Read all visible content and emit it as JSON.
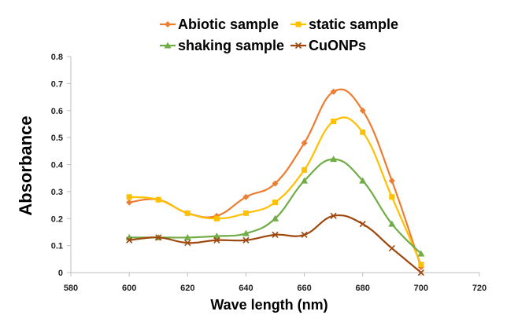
{
  "chart_data": {
    "type": "line",
    "xlabel": "Wave length (nm)",
    "ylabel": "Absorbance",
    "xlim": [
      580,
      720
    ],
    "ylim": [
      0,
      0.8
    ],
    "xticks": [
      "580",
      "600",
      "620",
      "640",
      "660",
      "680",
      "700",
      "720"
    ],
    "yticks": [
      "0",
      "0.1",
      "0.2",
      "0.3",
      "0.4",
      "0.5",
      "0.6",
      "0.7",
      "0.8"
    ],
    "x": [
      600,
      610,
      620,
      630,
      640,
      650,
      660,
      670,
      680,
      690,
      700
    ],
    "legend_position": "top",
    "series": [
      {
        "name": "Abiotic sample",
        "color": "#ED7D31",
        "marker": "diamond",
        "values": [
          0.26,
          0.27,
          0.22,
          0.21,
          0.28,
          0.33,
          0.48,
          0.67,
          0.6,
          0.34,
          0.02
        ]
      },
      {
        "name": "static sample",
        "color": "#FFC000",
        "marker": "square",
        "values": [
          0.28,
          0.27,
          0.22,
          0.2,
          0.22,
          0.26,
          0.38,
          0.56,
          0.52,
          0.28,
          0.03
        ]
      },
      {
        "name": "shaking sample",
        "color": "#70AD47",
        "marker": "triangle",
        "values": [
          0.13,
          0.13,
          0.13,
          0.135,
          0.145,
          0.2,
          0.34,
          0.42,
          0.34,
          0.18,
          0.07
        ]
      },
      {
        "name": "CuONPs",
        "color": "#9E480E",
        "marker": "x",
        "values": [
          0.12,
          0.13,
          0.11,
          0.12,
          0.12,
          0.14,
          0.14,
          0.21,
          0.18,
          0.09,
          0.0
        ]
      }
    ]
  }
}
